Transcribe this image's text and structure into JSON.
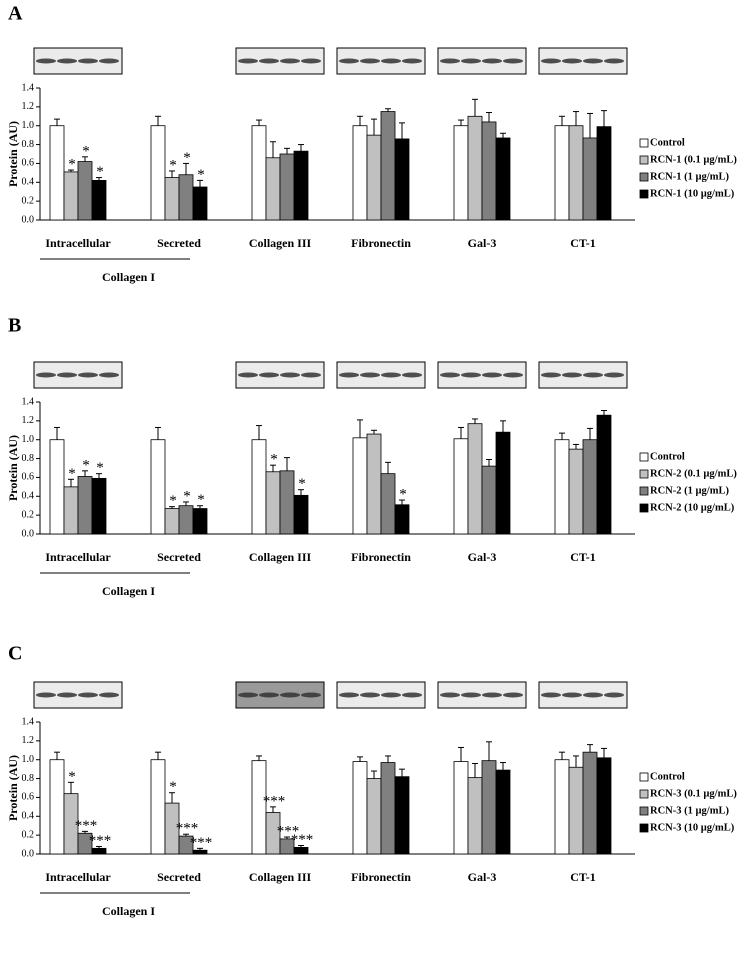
{
  "chart_data": [
    {
      "type": "bar",
      "panel": "A",
      "ylabel": "Protein (AU)",
      "group_label": "Collagen I",
      "categories": [
        "Intracellular",
        "Secreted",
        "Collagen III",
        "Fibronectin",
        "Gal-3",
        "CT-1"
      ],
      "ylim": [
        0,
        1.4
      ],
      "yticks": [
        {
          "value": 0,
          "label": "0.0"
        },
        0.2,
        0.4,
        0.6,
        0.8,
        {
          "value": 1,
          "label": "1.0"
        },
        1.2,
        1.4
      ],
      "series": [
        {
          "name": "Control",
          "color": "#ffffff",
          "values": [
            1.0,
            1.0,
            1.0,
            1.0,
            1.0,
            1.0
          ],
          "errors": [
            0.07,
            0.1,
            0.06,
            0.1,
            0.06,
            0.1
          ],
          "stars": [
            null,
            null,
            null,
            null,
            null,
            null
          ]
        },
        {
          "name": "RCN-1 (0.1 µg/mL)",
          "color": "#c0c0c0",
          "values": [
            0.51,
            0.45,
            0.66,
            0.9,
            1.1,
            1.0
          ],
          "errors": [
            0.02,
            0.07,
            0.17,
            0.17,
            0.18,
            0.15
          ],
          "stars": [
            "*",
            "*",
            null,
            null,
            null,
            null
          ]
        },
        {
          "name": "RCN-1 (1 µg/mL)",
          "color": "#808080",
          "values": [
            0.62,
            0.48,
            0.7,
            1.15,
            1.04,
            0.87
          ],
          "errors": [
            0.05,
            0.12,
            0.06,
            0.03,
            0.1,
            0.26
          ],
          "stars": [
            "*",
            "*",
            null,
            null,
            null,
            null
          ]
        },
        {
          "name": "RCN-1 (10 µg/mL)",
          "color": "#000000",
          "values": [
            0.42,
            0.35,
            0.73,
            0.86,
            0.87,
            0.99
          ],
          "errors": [
            0.03,
            0.07,
            0.07,
            0.17,
            0.05,
            0.17
          ],
          "stars": [
            "*",
            "*",
            null,
            null,
            null,
            null
          ]
        }
      ]
    },
    {
      "type": "bar",
      "panel": "B",
      "ylabel": "Protein (AU)",
      "group_label": "Collagen I",
      "categories": [
        "Intracellular",
        "Secreted",
        "Collagen III",
        "Fibronectin",
        "Gal-3",
        "CT-1"
      ],
      "ylim": [
        0,
        1.4
      ],
      "yticks": [
        {
          "value": 0,
          "label": "0.0"
        },
        0.2,
        0.4,
        0.6,
        0.8,
        {
          "value": 1,
          "label": "1.0"
        },
        1.2,
        1.4
      ],
      "series": [
        {
          "name": "Control",
          "color": "#ffffff",
          "values": [
            1.0,
            1.0,
            1.0,
            1.02,
            1.01,
            1.0
          ],
          "errors": [
            0.13,
            0.13,
            0.15,
            0.19,
            0.12,
            0.07
          ],
          "stars": [
            null,
            null,
            null,
            null,
            null,
            null
          ]
        },
        {
          "name": "RCN-2 (0.1 µg/mL)",
          "color": "#c0c0c0",
          "values": [
            0.5,
            0.27,
            0.66,
            1.06,
            1.17,
            0.9
          ],
          "errors": [
            0.08,
            0.02,
            0.07,
            0.04,
            0.05,
            0.05
          ],
          "stars": [
            "*",
            "*",
            "*",
            null,
            null,
            null
          ]
        },
        {
          "name": "RCN-2 (1 µg/mL)",
          "color": "#808080",
          "values": [
            0.61,
            0.3,
            0.67,
            0.64,
            0.72,
            1.0
          ],
          "errors": [
            0.06,
            0.04,
            0.14,
            0.12,
            0.07,
            0.12
          ],
          "stars": [
            "*",
            "*",
            null,
            null,
            null,
            null
          ]
        },
        {
          "name": "RCN-2 (10 µg/mL)",
          "color": "#000000",
          "values": [
            0.59,
            0.27,
            0.41,
            0.31,
            1.08,
            1.26
          ],
          "errors": [
            0.05,
            0.03,
            0.06,
            0.05,
            0.12,
            0.05
          ],
          "stars": [
            "*",
            "*",
            "*",
            "*",
            null,
            null
          ]
        }
      ]
    },
    {
      "type": "bar",
      "panel": "C",
      "ylabel": "Protein (AU)",
      "group_label": "Collagen I",
      "categories": [
        "Intracellular",
        "Secreted",
        "Collagen III",
        "Fibronectin",
        "Gal-3",
        "CT-1"
      ],
      "ylim": [
        0,
        1.4
      ],
      "yticks": [
        {
          "value": 0,
          "label": "0.0"
        },
        0.2,
        0.4,
        0.6,
        0.8,
        {
          "value": 1,
          "label": "1.0"
        },
        1.2,
        1.4
      ],
      "series": [
        {
          "name": "Control",
          "color": "#ffffff",
          "values": [
            1.0,
            1.0,
            0.99,
            0.98,
            0.98,
            1.0
          ],
          "errors": [
            0.08,
            0.08,
            0.05,
            0.05,
            0.15,
            0.08
          ],
          "stars": [
            null,
            null,
            null,
            null,
            null,
            null
          ]
        },
        {
          "name": "RCN-3 (0.1 µg/mL)",
          "color": "#c0c0c0",
          "values": [
            0.64,
            0.54,
            0.44,
            0.8,
            0.81,
            0.92
          ],
          "errors": [
            0.12,
            0.11,
            0.06,
            0.08,
            0.15,
            0.12
          ],
          "stars": [
            "*",
            "*",
            "***",
            null,
            null,
            null
          ]
        },
        {
          "name": "RCN-3 (1 µg/mL)",
          "color": "#808080",
          "values": [
            0.22,
            0.19,
            0.16,
            0.97,
            0.99,
            1.08
          ],
          "errors": [
            0.02,
            0.02,
            0.02,
            0.07,
            0.2,
            0.08
          ],
          "stars": [
            "***",
            "***",
            "***",
            null,
            null,
            null
          ]
        },
        {
          "name": "RCN-3 (10 µg/mL)",
          "color": "#000000",
          "values": [
            0.06,
            0.04,
            0.07,
            0.82,
            0.89,
            1.02
          ],
          "errors": [
            0.02,
            0.02,
            0.02,
            0.08,
            0.08,
            0.1
          ],
          "stars": [
            "***",
            "***",
            "***",
            null,
            null,
            null
          ]
        }
      ]
    }
  ]
}
